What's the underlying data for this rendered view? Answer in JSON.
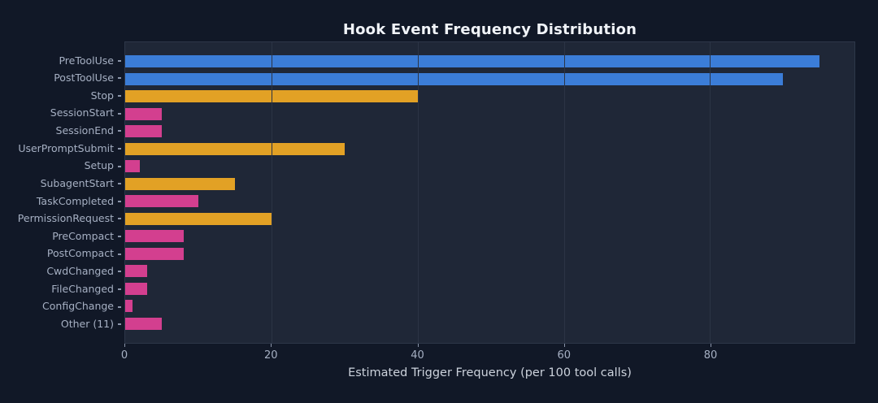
{
  "chart_data": {
    "type": "bar",
    "orientation": "horizontal",
    "title": "Hook Event Frequency Distribution",
    "xlabel": "Estimated Trigger Frequency (per 100 tool calls)",
    "categories": [
      "PreToolUse",
      "PostToolUse",
      "Stop",
      "SessionStart",
      "SessionEnd",
      "UserPromptSubmit",
      "Setup",
      "SubagentStart",
      "TaskCompleted",
      "PermissionRequest",
      "PreCompact",
      "PostCompact",
      "CwdChanged",
      "FileChanged",
      "ConfigChange",
      "Other (11)"
    ],
    "values": [
      95,
      90,
      40,
      5,
      5,
      30,
      2,
      15,
      10,
      20,
      8,
      8,
      3,
      3,
      1,
      5
    ],
    "bar_colors": [
      "#3b7dd8",
      "#3b7dd8",
      "#e2a125",
      "#d33f8f",
      "#d33f8f",
      "#e2a125",
      "#d33f8f",
      "#e2a125",
      "#d33f8f",
      "#e2a125",
      "#d33f8f",
      "#d33f8f",
      "#d33f8f",
      "#d33f8f",
      "#d33f8f",
      "#d33f8f"
    ],
    "xlim": [
      0,
      99.75
    ],
    "xticks": [
      0,
      20,
      40,
      60,
      80
    ],
    "grid": "vertical-gridlines-over-bars",
    "legend": "none",
    "palette": {
      "high_blue": "#3b7dd8",
      "mid_orange": "#e2a125",
      "low_pink": "#d33f8f"
    },
    "theme_colors": {
      "figure_bg": "#111827",
      "plot_bg": "#1f2737",
      "gridline": "#2b3445",
      "spine": "#2d3749",
      "title_color": "#f0f3f8",
      "tick_color": "#a6b0c3",
      "tick_mark": "#8b95aa",
      "xlabel_color": "#ccd2dc"
    }
  }
}
